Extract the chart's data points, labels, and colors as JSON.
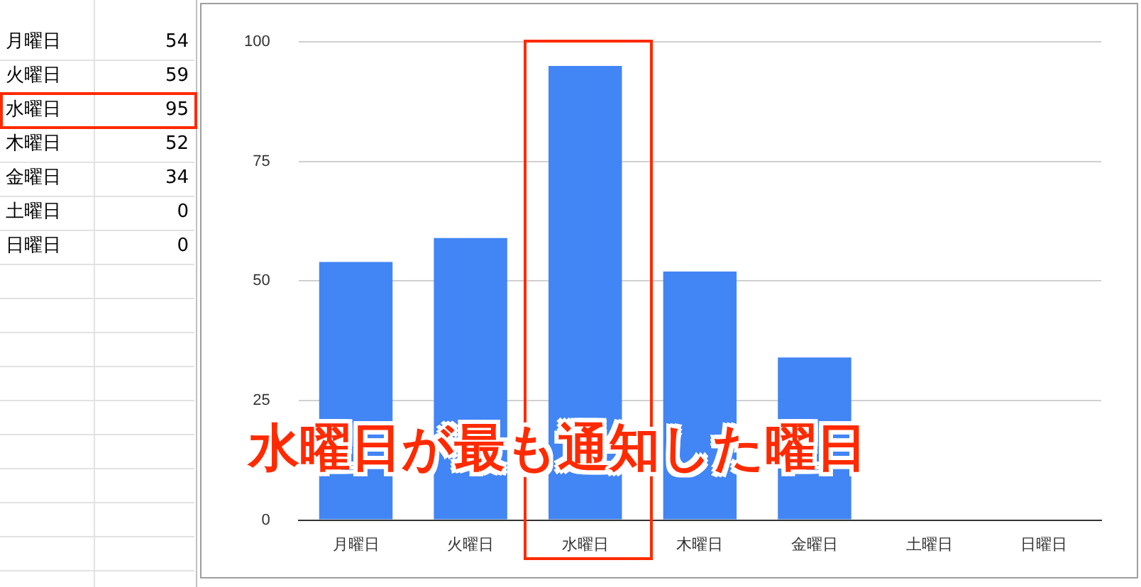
{
  "chart_data": {
    "type": "bar",
    "categories": [
      "月曜日",
      "火曜日",
      "水曜日",
      "木曜日",
      "金曜日",
      "土曜日",
      "日曜日"
    ],
    "values": [
      54,
      59,
      95,
      52,
      34,
      0,
      0
    ],
    "color": "#4285f4",
    "ylim": [
      0,
      100
    ],
    "yticks": [
      0,
      25,
      50,
      75,
      100
    ],
    "grid": "y",
    "legend": false,
    "annotations": [
      "54",
      "59",
      "95",
      "52",
      "34",
      "0",
      "0",
      "水曜日が最も通知した曜日"
    ]
  }
}
